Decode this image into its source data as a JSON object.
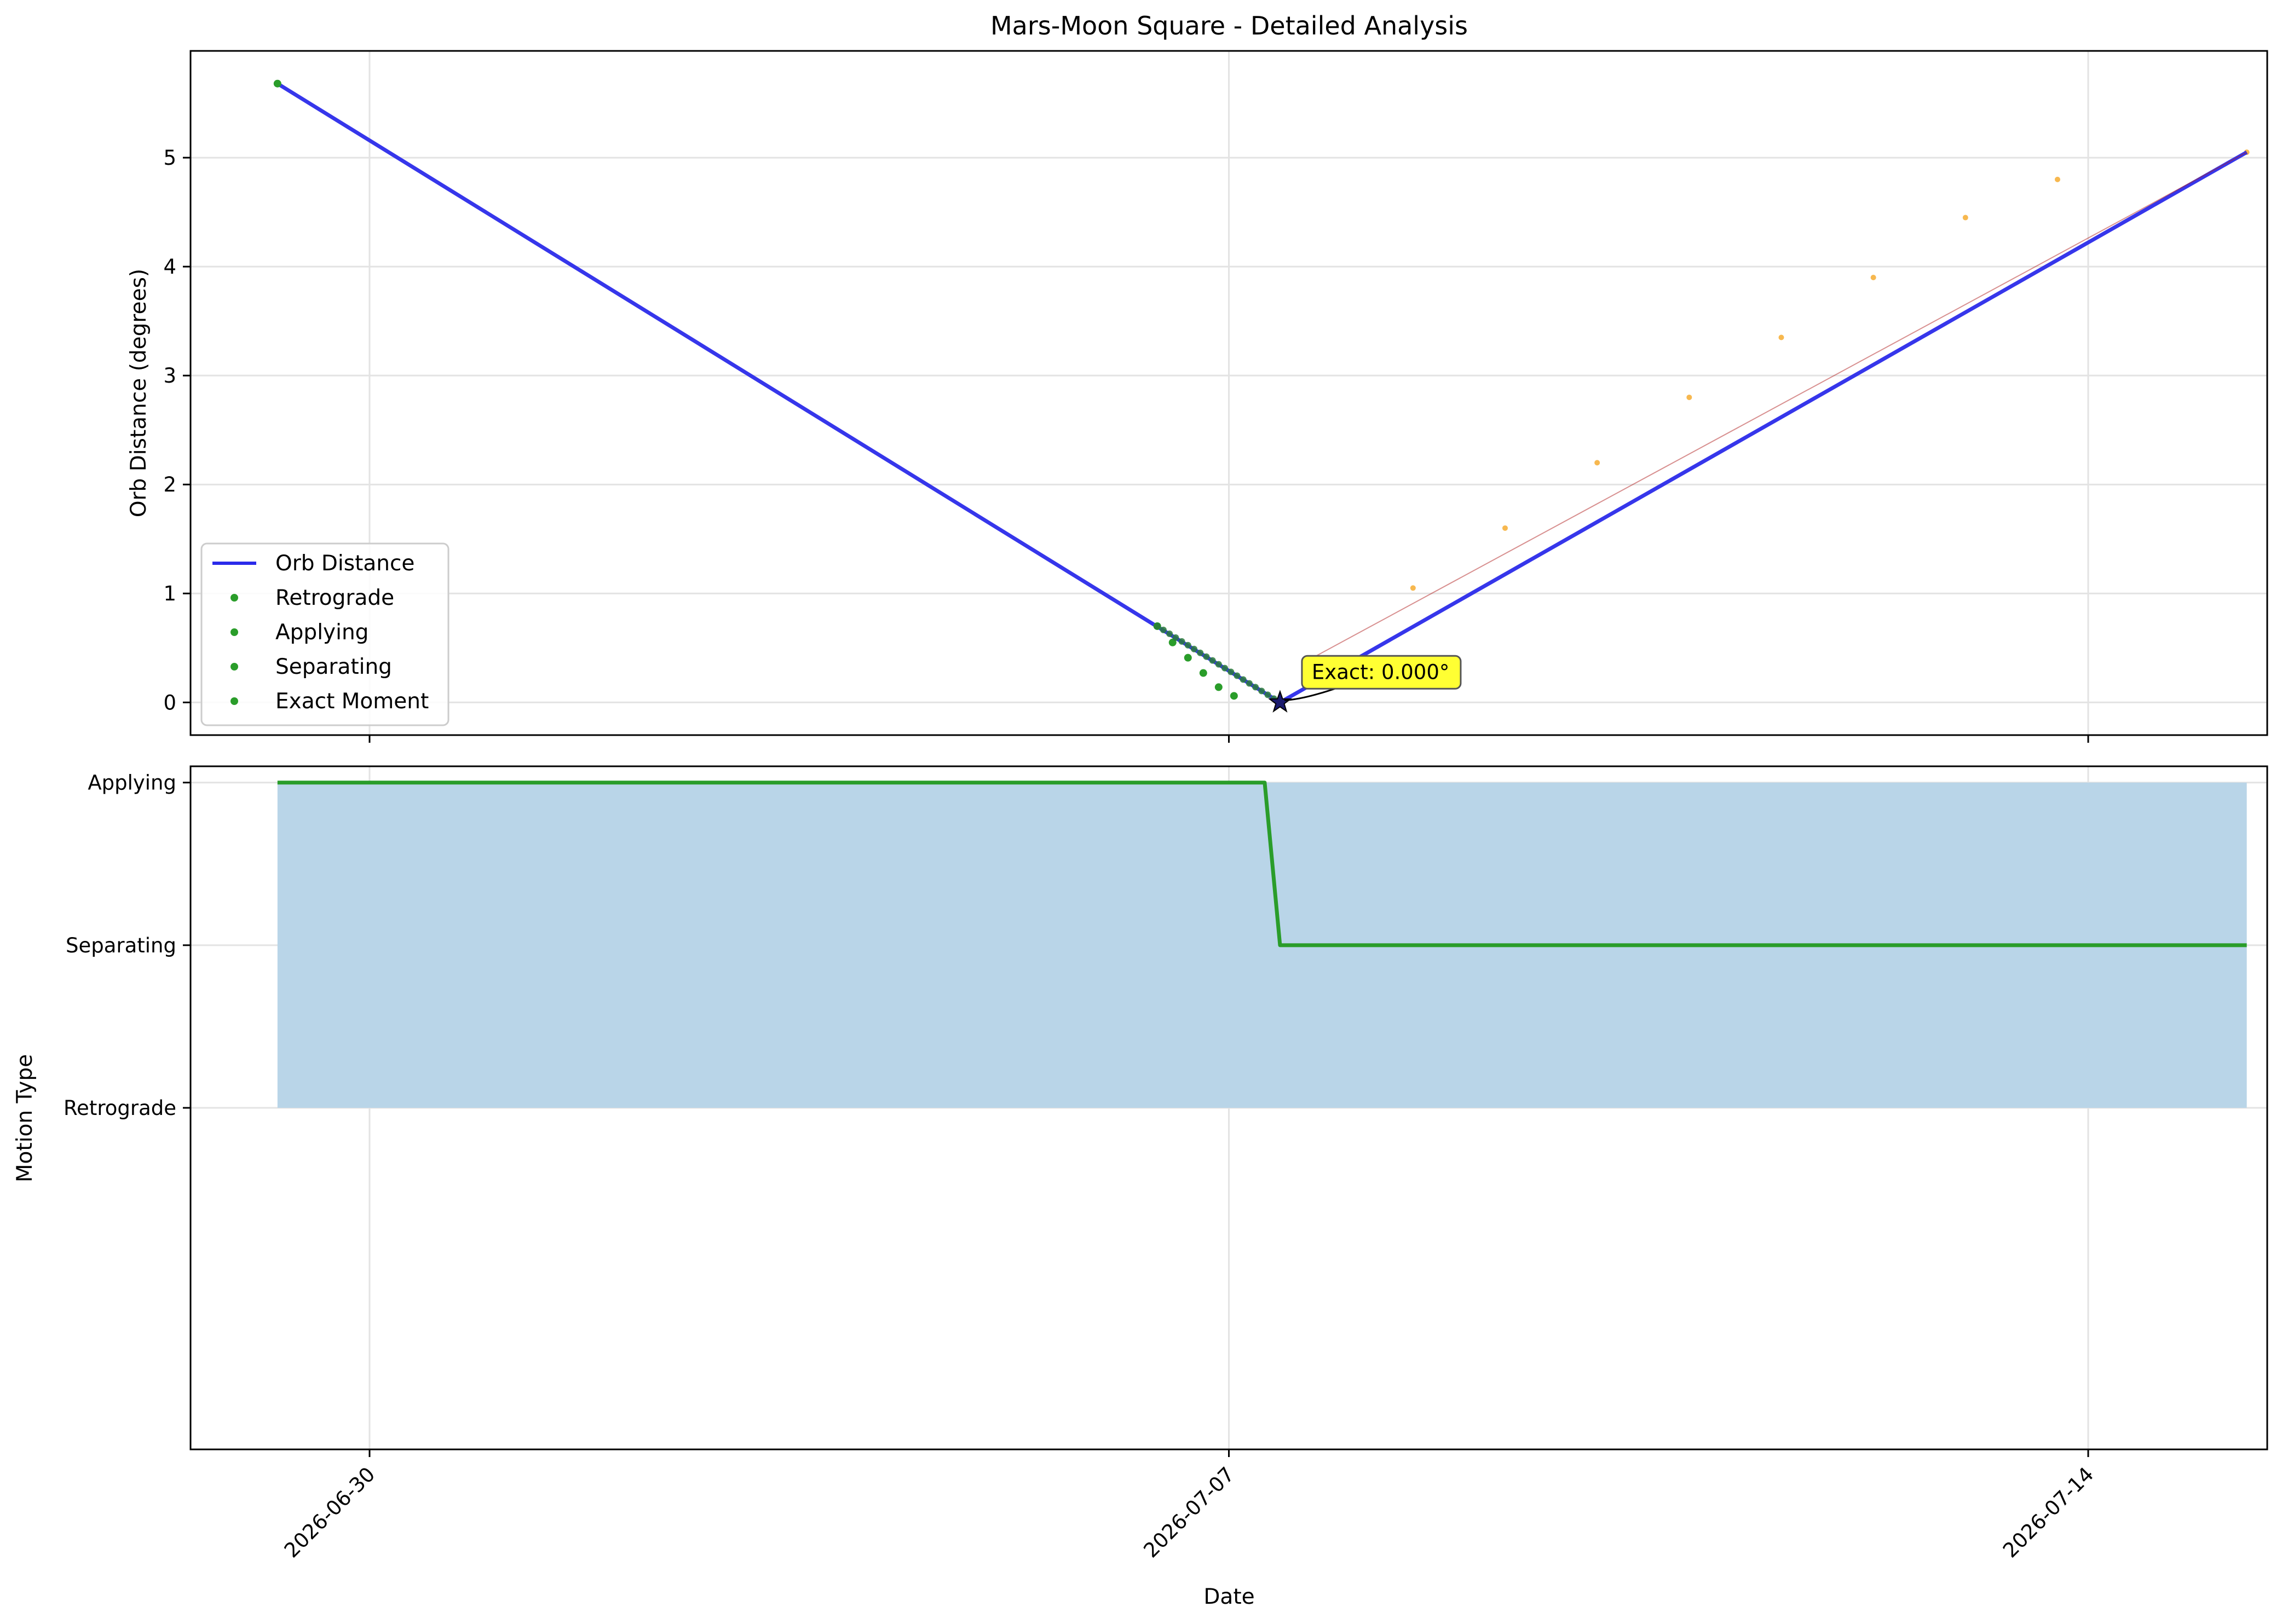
{
  "chart_data": [
    {
      "type": "line",
      "title": "Mars-Moon Square - Detailed Analysis",
      "xlabel": "",
      "ylabel": "Orb Distance (degrees)",
      "x_range": [
        "2026-06-28T13:00",
        "2026-07-15T11:00"
      ],
      "ylim": [
        -0.3,
        5.98
      ],
      "y_ticks": [
        0,
        1,
        2,
        3,
        4,
        5
      ],
      "grid": true,
      "legend_position": "lower-left",
      "series": [
        {
          "name": "Orb Distance",
          "color": "#2b2bea",
          "points": [
            {
              "x": "2026-06-29T06:00",
              "y": 5.68
            },
            {
              "x": "2026-07-07T10:00",
              "y": 0.0
            },
            {
              "x": "2026-07-15T07:00",
              "y": 5.05
            }
          ]
        },
        {
          "name": "Retrograde",
          "color": "#2a9d2a",
          "points": []
        },
        {
          "name": "Applying",
          "color": "#2a9d2a",
          "points": [
            {
              "x": "2026-06-29T06:00",
              "y": 5.68
            },
            {
              "x": "2026-07-06T10:00",
              "y": 0.7
            },
            {
              "x": "2026-07-06T13:00",
              "y": 0.55
            },
            {
              "x": "2026-07-06T16:00",
              "y": 0.41
            },
            {
              "x": "2026-07-06T19:00",
              "y": 0.27
            },
            {
              "x": "2026-07-06T22:00",
              "y": 0.14
            },
            {
              "x": "2026-07-07T01:00",
              "y": 0.06
            }
          ]
        },
        {
          "name": "Separating",
          "color": "#f5a623",
          "points": [
            {
              "x": "2026-07-07T16:00",
              "y": 0.4
            },
            {
              "x": "2026-07-08T12:00",
              "y": 1.05
            },
            {
              "x": "2026-07-09T06:00",
              "y": 1.6
            },
            {
              "x": "2026-07-10T00:00",
              "y": 2.2
            },
            {
              "x": "2026-07-10T18:00",
              "y": 2.8
            },
            {
              "x": "2026-07-11T12:00",
              "y": 3.35
            },
            {
              "x": "2026-07-12T06:00",
              "y": 3.9
            },
            {
              "x": "2026-07-13T00:00",
              "y": 4.45
            },
            {
              "x": "2026-07-13T18:00",
              "y": 4.8
            },
            {
              "x": "2026-07-15T07:00",
              "y": 5.05
            }
          ]
        },
        {
          "name": "Exact Moment",
          "color": "#2a9d2a",
          "points": [
            {
              "x": "2026-07-07T10:00",
              "y": 0.0
            }
          ]
        }
      ],
      "annotation": {
        "text": "Exact: 0.000°",
        "x": "2026-07-07T10:00",
        "y": 0.0
      }
    },
    {
      "type": "area",
      "title": "",
      "xlabel": "Date",
      "ylabel": "Motion Type",
      "x_range": [
        "2026-06-28T13:00",
        "2026-07-15T11:00"
      ],
      "x_ticks": [
        "2026-06-30",
        "2026-07-07",
        "2026-07-14"
      ],
      "y_categories": [
        "Retrograde",
        "Separating",
        "Applying"
      ],
      "ylim": [
        -1.1,
        3.1
      ],
      "grid": true,
      "series": [
        {
          "name": "Motion Type",
          "color": "#2a9d2a",
          "points": [
            {
              "x": "2026-06-29T06:00",
              "y": 3
            },
            {
              "x": "2026-07-07T07:00",
              "y": 3
            },
            {
              "x": "2026-07-07T10:00",
              "y": 2
            },
            {
              "x": "2026-07-15T07:00",
              "y": 2
            }
          ]
        }
      ],
      "fill": {
        "color": "#b9d5e8",
        "x": [
          "2026-06-29T06:00",
          "2026-07-15T07:00"
        ],
        "y_range": [
          1,
          3
        ]
      }
    }
  ]
}
